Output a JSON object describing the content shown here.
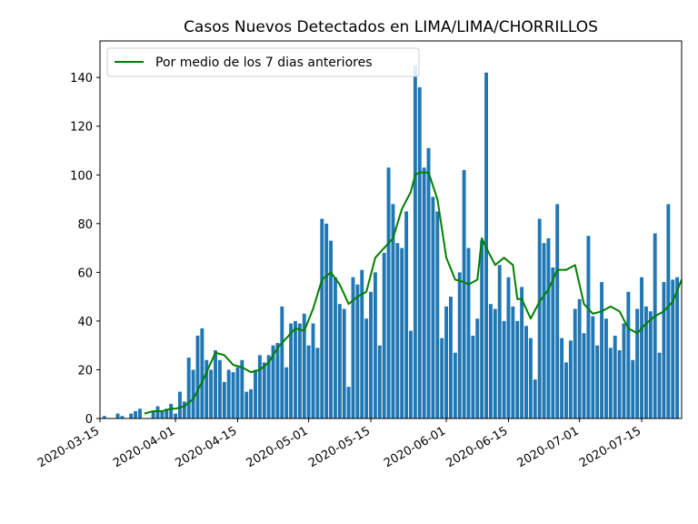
{
  "chart_data": {
    "type": "bar",
    "title": "Casos Nuevos Detectados en LIMA/LIMA/CHORRILLOS",
    "xlabel": "",
    "ylabel": "",
    "ylim": [
      0,
      155
    ],
    "x_range": [
      "2020-03-15",
      "2020-07-24"
    ],
    "yticks": [
      0,
      20,
      40,
      60,
      80,
      100,
      120,
      140
    ],
    "xticks": [
      "2020-03-15",
      "2020-04-01",
      "2020-04-15",
      "2020-05-01",
      "2020-05-15",
      "2020-06-01",
      "2020-06-15",
      "2020-07-01",
      "2020-07-15"
    ],
    "grid": false,
    "legend_position": "top-left",
    "colors": {
      "bars": "#1f77b4",
      "line": "#008000"
    },
    "series": [
      {
        "kind": "bar",
        "start_date": "2020-03-16",
        "values": [
          1,
          0,
          0,
          2,
          1,
          0,
          2,
          3,
          4,
          0,
          0,
          3,
          5,
          3,
          4,
          6,
          2,
          11,
          7,
          25,
          20,
          34,
          37,
          24,
          20,
          28,
          24,
          15,
          20,
          19,
          21,
          24,
          11,
          12,
          20,
          26,
          23,
          26,
          30,
          31,
          46,
          21,
          39,
          40,
          39,
          43,
          30,
          39,
          29,
          82,
          80,
          73,
          58,
          47,
          45,
          13,
          58,
          55,
          61,
          41,
          52,
          60,
          30,
          68,
          103,
          88,
          72,
          70,
          85,
          36,
          145,
          136,
          103,
          111,
          91,
          85,
          33,
          46,
          50,
          27,
          60,
          102,
          70,
          34,
          41,
          73,
          142,
          47,
          45,
          63,
          40,
          58,
          46,
          40,
          54,
          38,
          33,
          16,
          82,
          72,
          74,
          62,
          88,
          33,
          23,
          32,
          45,
          49,
          35,
          75,
          42,
          30,
          56,
          41,
          29,
          34,
          28,
          39,
          52,
          24,
          45,
          58,
          46,
          44,
          76,
          27,
          56,
          88,
          57,
          58
        ]
      },
      {
        "kind": "line",
        "name": "Por medio de los 7 dias anteriores",
        "x": [
          "2020-03-25",
          "2020-03-27",
          "2020-03-29",
          "2020-03-31",
          "2020-04-01",
          "2020-04-03",
          "2020-04-05",
          "2020-04-07",
          "2020-04-09",
          "2020-04-10",
          "2020-04-12",
          "2020-04-14",
          "2020-04-16",
          "2020-04-18",
          "2020-04-20",
          "2020-04-22",
          "2020-04-24",
          "2020-04-26",
          "2020-04-28",
          "2020-04-30",
          "2020-05-02",
          "2020-05-04",
          "2020-05-06",
          "2020-05-08",
          "2020-05-10",
          "2020-05-12",
          "2020-05-14",
          "2020-05-16",
          "2020-05-18",
          "2020-05-20",
          "2020-05-22",
          "2020-05-24",
          "2020-05-25",
          "2020-05-26",
          "2020-05-28",
          "2020-05-30",
          "2020-06-01",
          "2020-06-03",
          "2020-06-05",
          "2020-06-06",
          "2020-06-08",
          "2020-06-09",
          "2020-06-10",
          "2020-06-12",
          "2020-06-14",
          "2020-06-16",
          "2020-06-17",
          "2020-06-18",
          "2020-06-20",
          "2020-06-22",
          "2020-06-24",
          "2020-06-26",
          "2020-06-28",
          "2020-06-30",
          "2020-07-02",
          "2020-07-04",
          "2020-07-06",
          "2020-07-08",
          "2020-07-10",
          "2020-07-12",
          "2020-07-14",
          "2020-07-16",
          "2020-07-18",
          "2020-07-20",
          "2020-07-22",
          "2020-07-24"
        ],
        "values": [
          2,
          3,
          3,
          4,
          4,
          5,
          8,
          15,
          23,
          27,
          26,
          22,
          21,
          19,
          20,
          23,
          29,
          33,
          37,
          36,
          45,
          57,
          60,
          55,
          47,
          50,
          52,
          66,
          70,
          74,
          86,
          93,
          100,
          101,
          101,
          90,
          66,
          57,
          56,
          55,
          57,
          74,
          70,
          63,
          66,
          63,
          49,
          49,
          41,
          48,
          53,
          61,
          61,
          63,
          47,
          43,
          44,
          46,
          44,
          37,
          35,
          39,
          42,
          44,
          48,
          57
        ]
      }
    ]
  }
}
